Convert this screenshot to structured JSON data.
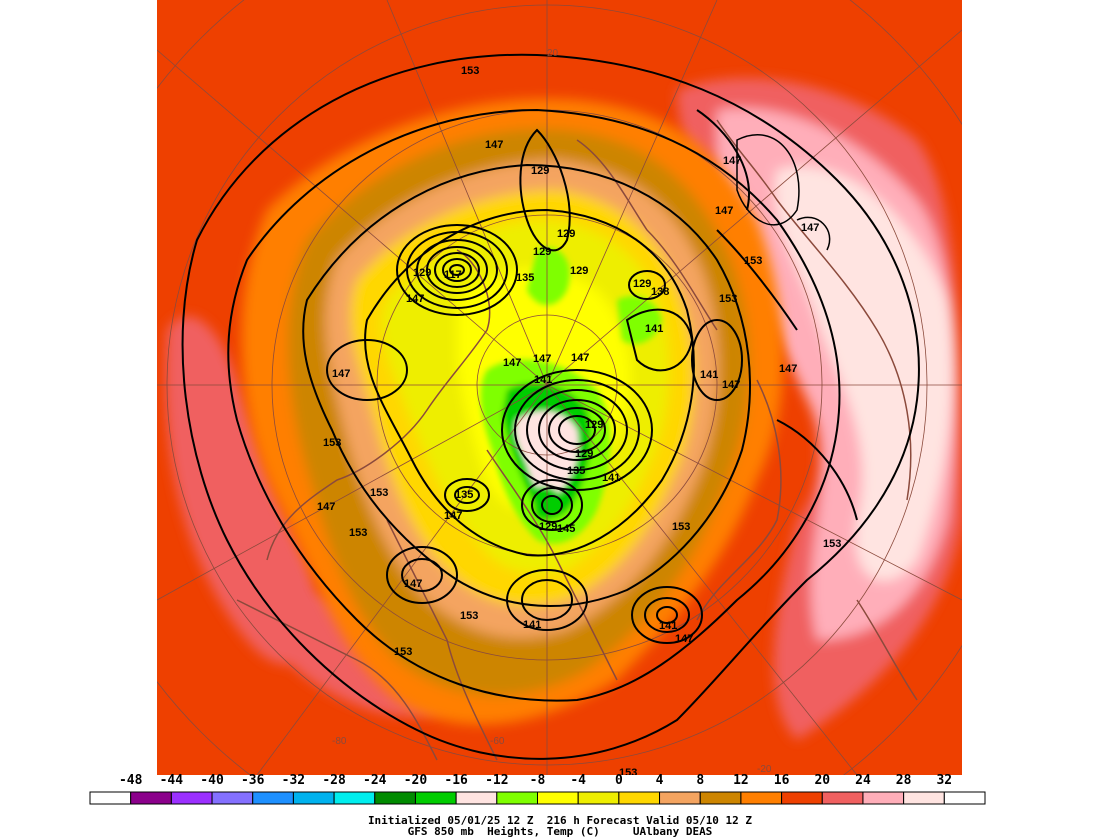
{
  "map": {
    "projection": "north-polar-stereographic",
    "latitude_labels": [
      "80",
      "60",
      "40",
      "20"
    ],
    "longitude_labels": [
      "-60",
      "-20",
      "-80"
    ],
    "height_contour_labels": [
      "153",
      "147",
      "129",
      "129",
      "129",
      "129",
      "135",
      "117",
      "129",
      "129",
      "147",
      "138",
      "141",
      "147",
      "147",
      "141",
      "147",
      "141",
      "147",
      "153",
      "147",
      "153",
      "147",
      "129",
      "129",
      "135",
      "141",
      "135",
      "147",
      "153",
      "129",
      "145",
      "153",
      "147",
      "153",
      "141",
      "141",
      "147",
      "153",
      "153",
      "153",
      "147",
      "147",
      "153"
    ],
    "colors": {
      "ocean_background": "#ee4000",
      "land_background": "#f06040",
      "contour": "#000000",
      "coastline": "#8b4a3c"
    }
  },
  "legend": {
    "ticks": [
      "-48",
      "-44",
      "-40",
      "-36",
      "-32",
      "-28",
      "-24",
      "-20",
      "-16",
      "-12",
      "-8",
      "-4",
      "0",
      "4",
      "8",
      "12",
      "16",
      "20",
      "24",
      "28",
      "32"
    ],
    "colors": [
      "#ffffff",
      "#8b008b",
      "#9b30ff",
      "#8470ff",
      "#1e90ff",
      "#00b2ee",
      "#00eeee",
      "#008b00",
      "#00cd00",
      "#ffe4e1",
      "#7fff00",
      "#ffff00",
      "#eeee00",
      "#ffd700",
      "#f4a460",
      "#cd8500",
      "#ff7f00",
      "#ee4000",
      "#f06060",
      "#ffaeb9",
      "#ffe4e1",
      "#ffffff"
    ]
  },
  "caption": {
    "line1": "Initialized 05/01/25 12 Z  216 h Forecast Valid 05/10 12 Z",
    "line2": "GFS 850 mb  Heights, Temp (C)     UAlbany DEAS"
  }
}
